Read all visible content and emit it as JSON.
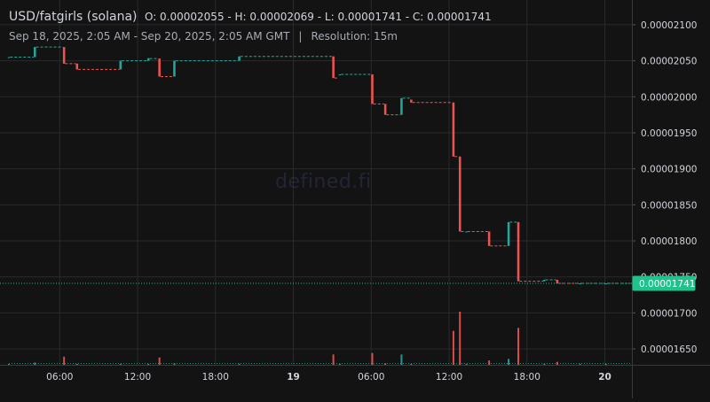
{
  "header": {
    "pair": "USD/fatgirls (solana)",
    "ohlc": "O: 0.00002055 - H: 0.00002069 - L: 0.00001741 - C: 0.00001741",
    "range": "Sep 18, 2025, 2:05 AM - Sep 20, 2025, 2:05 AM GMT",
    "separator": "|",
    "resolution": "Resolution: 15m"
  },
  "watermark": "defined.fi",
  "colors": {
    "up": "#26a69a",
    "down": "#ef5350",
    "background": "#131313",
    "grid": "#2a2a2a",
    "last_price_badge": "#1ec28b"
  },
  "chart_data": {
    "type": "candlestick",
    "title": "USD/fatgirls (solana)",
    "y_ticks": [
      "0.00002100",
      "0.00002050",
      "0.00002000",
      "0.00001950",
      "0.00001900",
      "0.00001850",
      "0.00001800",
      "0.00001750",
      "0.00001700",
      "0.00001650"
    ],
    "y_tick_values": [
      2.1e-05,
      2.05e-05,
      2e-05,
      1.95e-05,
      1.9e-05,
      1.85e-05,
      1.8e-05,
      1.75e-05,
      1.7e-05,
      1.65e-05
    ],
    "ylim": [
      1.628e-05,
      2.122e-05
    ],
    "x_ticks": [
      {
        "label": "06:00",
        "t": 3.917,
        "bold": false
      },
      {
        "label": "12:00",
        "t": 9.917,
        "bold": false
      },
      {
        "label": "18:00",
        "t": 15.917,
        "bold": false
      },
      {
        "label": "19",
        "t": 21.917,
        "bold": true
      },
      {
        "label": "06:00",
        "t": 27.917,
        "bold": false
      },
      {
        "label": "12:00",
        "t": 33.917,
        "bold": false
      },
      {
        "label": "18:00",
        "t": 39.917,
        "bold": false
      },
      {
        "label": "20",
        "t": 45.917,
        "bold": true
      }
    ],
    "x_unit": "hours since Sep 18, 2025 2:05 AM GMT",
    "xlim": [
      0,
      48
    ],
    "last_price": "0.00001741",
    "last_price_value": 1.741e-05,
    "candles": [
      {
        "t": 0.0,
        "o": 2.055e-05,
        "h": 2.055e-05,
        "l": 2.055e-05,
        "c": 2.055e-05,
        "v": 0.5
      },
      {
        "t": 2.0,
        "o": 2.055e-05,
        "h": 2.069e-05,
        "l": 2.055e-05,
        "c": 2.069e-05,
        "v": 1.5
      },
      {
        "t": 4.25,
        "o": 2.069e-05,
        "h": 2.069e-05,
        "l": 2.046e-05,
        "c": 2.046e-05,
        "v": 5.5
      },
      {
        "t": 5.25,
        "o": 2.046e-05,
        "h": 2.046e-05,
        "l": 2.038e-05,
        "c": 2.038e-05,
        "v": 0.6
      },
      {
        "t": 8.6,
        "o": 2.038e-05,
        "h": 2.05e-05,
        "l": 2.038e-05,
        "c": 2.05e-05,
        "v": 0.6
      },
      {
        "t": 10.75,
        "o": 2.05e-05,
        "h": 2.054e-05,
        "l": 2.05e-05,
        "c": 2.053e-05,
        "v": 0.6
      },
      {
        "t": 11.6,
        "o": 2.053e-05,
        "h": 2.053e-05,
        "l": 2.028e-05,
        "c": 2.028e-05,
        "v": 5.0
      },
      {
        "t": 12.75,
        "o": 2.028e-05,
        "h": 2.05e-05,
        "l": 2.028e-05,
        "c": 2.05e-05,
        "v": 1.0
      },
      {
        "t": 17.75,
        "o": 2.05e-05,
        "h": 2.056e-05,
        "l": 2.05e-05,
        "c": 2.056e-05,
        "v": 0.6
      },
      {
        "t": 25.0,
        "o": 2.056e-05,
        "h": 2.056e-05,
        "l": 2.026e-05,
        "c": 2.026e-05,
        "v": 7.0
      },
      {
        "t": 25.5,
        "o": 2.031e-05,
        "h": 2.031e-05,
        "l": 2.031e-05,
        "c": 2.031e-05,
        "v": 0.5
      },
      {
        "t": 28.0,
        "o": 2.031e-05,
        "h": 2.031e-05,
        "l": 1.99e-05,
        "c": 1.99e-05,
        "v": 8.0
      },
      {
        "t": 29.0,
        "o": 1.99e-05,
        "h": 1.99e-05,
        "l": 1.975e-05,
        "c": 1.975e-05,
        "v": 1.0
      },
      {
        "t": 30.25,
        "o": 1.975e-05,
        "h": 1.998e-05,
        "l": 1.975e-05,
        "c": 1.998e-05,
        "v": 7.0
      },
      {
        "t": 31.0,
        "o": 1.996e-05,
        "h": 1.996e-05,
        "l": 1.992e-05,
        "c": 1.992e-05,
        "v": 0.6
      },
      {
        "t": 34.25,
        "o": 1.992e-05,
        "h": 1.992e-05,
        "l": 1.917e-05,
        "c": 1.917e-05,
        "v": 23.0
      },
      {
        "t": 34.75,
        "o": 1.917e-05,
        "h": 1.917e-05,
        "l": 1.813e-05,
        "c": 1.813e-05,
        "v": 36.0
      },
      {
        "t": 35.25,
        "o": 1.813e-05,
        "h": 1.813e-05,
        "l": 1.813e-05,
        "c": 1.813e-05,
        "v": 0.5
      },
      {
        "t": 37.0,
        "o": 1.813e-05,
        "h": 1.813e-05,
        "l": 1.793e-05,
        "c": 1.793e-05,
        "v": 3.0
      },
      {
        "t": 38.5,
        "o": 1.793e-05,
        "h": 1.826e-05,
        "l": 1.793e-05,
        "c": 1.826e-05,
        "v": 4.0
      },
      {
        "t": 39.25,
        "o": 1.826e-05,
        "h": 1.826e-05,
        "l": 1.744e-05,
        "c": 1.744e-05,
        "v": 25.0
      },
      {
        "t": 41.25,
        "o": 1.744e-05,
        "h": 1.746e-05,
        "l": 1.744e-05,
        "c": 1.746e-05,
        "v": 0.5
      },
      {
        "t": 42.25,
        "o": 1.746e-05,
        "h": 1.746e-05,
        "l": 1.741e-05,
        "c": 1.741e-05,
        "v": 2.0
      },
      {
        "t": 44.0,
        "o": 1.741e-05,
        "h": 1.741e-05,
        "l": 1.741e-05,
        "c": 1.741e-05,
        "v": 0.5
      },
      {
        "t": 46.0,
        "o": 1.741e-05,
        "h": 1.741e-05,
        "l": 1.741e-05,
        "c": 1.741e-05,
        "v": 0.5
      }
    ]
  }
}
